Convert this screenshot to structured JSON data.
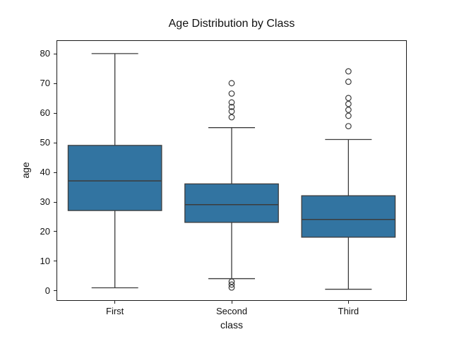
{
  "chart_data": {
    "type": "boxplot",
    "title": "Age Distribution by Class",
    "xlabel": "class",
    "ylabel": "age",
    "categories": [
      "First",
      "Second",
      "Third"
    ],
    "yticks": [
      0,
      10,
      20,
      30,
      40,
      50,
      60,
      70,
      80
    ],
    "ylim": [
      -3.5,
      84.5
    ],
    "grid": false,
    "legend": null,
    "box_fill_color": "#3274a1",
    "line_color": "#3c3c3c",
    "spine_color": "#1a1a1a",
    "boxes": [
      {
        "category": "First",
        "whisker_low": 0.92,
        "q1": 27,
        "median": 37,
        "q3": 49,
        "whisker_high": 80,
        "outliers": []
      },
      {
        "category": "Second",
        "whisker_low": 4,
        "q1": 23,
        "median": 29,
        "q3": 36,
        "whisker_high": 55,
        "outliers": [
          70,
          66.5,
          63.5,
          62,
          60.5,
          58.5,
          3,
          2,
          1
        ]
      },
      {
        "category": "Third",
        "whisker_low": 0.42,
        "q1": 18,
        "median": 24,
        "q3": 32,
        "whisker_high": 51,
        "outliers": [
          74,
          70.5,
          65,
          63,
          61,
          59,
          55.5
        ]
      }
    ]
  }
}
